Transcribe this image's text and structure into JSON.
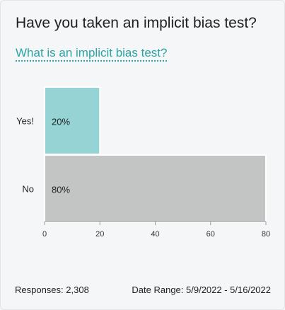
{
  "poll": {
    "question": "Have you taken an implicit bias test?",
    "info_link": "What is an implicit bias test?"
  },
  "footer": {
    "responses": "Responses: 2,308",
    "date_range": "Date Range: 5/9/2022 - 5/16/2022"
  },
  "colors": {
    "accent": "#2aa3a3",
    "bar_yes": "#95d3d5",
    "bar_no": "#c3c5c5",
    "axis": "#9a9a9a"
  },
  "chart_data": {
    "type": "bar",
    "orientation": "horizontal",
    "title": "",
    "xlabel": "",
    "ylabel": "",
    "categories": [
      "Yes!",
      "No"
    ],
    "values": [
      20,
      80
    ],
    "value_labels": [
      "20%",
      "80%"
    ],
    "xlim": [
      0,
      80
    ],
    "xticks": [
      0,
      20,
      40,
      60,
      80
    ],
    "grid": false,
    "legend": "none"
  }
}
